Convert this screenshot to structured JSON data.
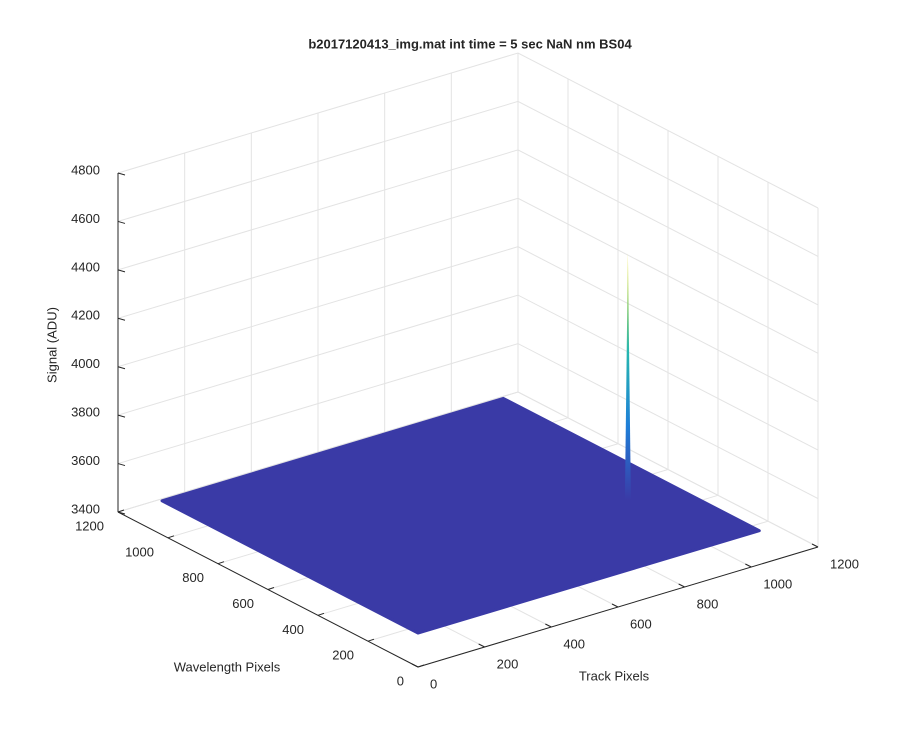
{
  "chart_data": {
    "type": "surface3d",
    "title": "b2017120413_img.mat int time = 5 sec  NaN nm BS04",
    "x_label": "Track Pixels",
    "y_label": "Wavelength Pixels",
    "z_label": "Signal (ADU)",
    "xlim": [
      0,
      1200
    ],
    "ylim": [
      0,
      1200
    ],
    "zlim": [
      3400,
      4800
    ],
    "xticks": [
      0,
      200,
      400,
      600,
      800,
      1000,
      1200
    ],
    "yticks": [
      0,
      200,
      400,
      600,
      800,
      1000,
      1200
    ],
    "zticks": [
      3400,
      3600,
      3800,
      4000,
      4200,
      4400,
      4600,
      4800
    ],
    "grid": true,
    "surface": {
      "x_max": 1024,
      "y_max": 1024,
      "level": 3540,
      "color": "#3a3aa6"
    },
    "peak": {
      "x": 887,
      "y": 343,
      "z": 4560
    }
  }
}
